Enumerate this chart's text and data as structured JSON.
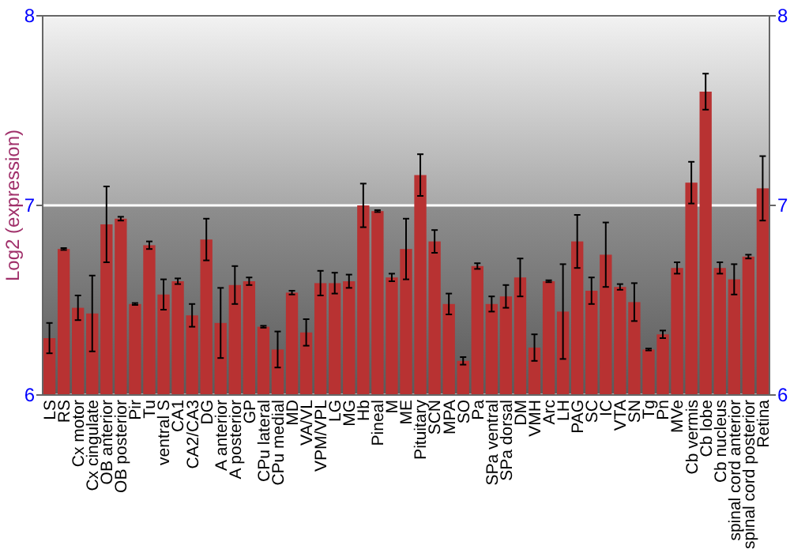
{
  "chart_data": {
    "type": "bar",
    "ylabel": "Log2 (expression)",
    "categories": [
      "LS",
      "RS",
      "Cx motor",
      "Cx cingulate",
      "OB anterior",
      "OB posterior",
      "Pir",
      "Tu",
      "ventral S",
      "CA1",
      "CA2/CA3",
      "DG",
      "A anterior",
      "A posterior",
      "GP",
      "CPu lateral",
      "CPu medial",
      "MD",
      "VA/VL",
      "VPM/VPL",
      "LG",
      "MG",
      "Hb",
      "Pineal",
      "M",
      "ME",
      "Pituitary",
      "SCN",
      "MPA",
      "SO",
      "Pa",
      "SPa ventral",
      "SPa dorsal",
      "DM",
      "VMH",
      "Arc",
      "LH",
      "PAG",
      "SC",
      "IC",
      "VTA",
      "SN",
      "Tg",
      "Pn",
      "MVe",
      "Cb vermis",
      "Cb lobe",
      "Cb nucleus",
      "spinal cord anterior",
      "spinal cord posterior",
      "Retina"
    ],
    "values": [
      6.3,
      6.77,
      6.46,
      6.43,
      6.9,
      6.93,
      6.48,
      6.79,
      6.53,
      6.6,
      6.42,
      6.82,
      6.38,
      6.58,
      6.6,
      6.36,
      6.24,
      6.54,
      6.33,
      6.59,
      6.59,
      6.6,
      7.0,
      6.97,
      6.62,
      6.77,
      7.16,
      6.81,
      6.48,
      6.18,
      6.68,
      6.48,
      6.52,
      6.62,
      6.25,
      6.6,
      6.44,
      6.81,
      6.55,
      6.74,
      6.57,
      6.49,
      6.24,
      6.32,
      6.67,
      7.12,
      7.6,
      6.67,
      6.61,
      6.73,
      7.09
    ],
    "errors": [
      0.08,
      0.005,
      0.065,
      0.2,
      0.2,
      0.01,
      0.005,
      0.02,
      0.08,
      0.015,
      0.06,
      0.11,
      0.185,
      0.1,
      0.02,
      0.005,
      0.095,
      0.01,
      0.07,
      0.065,
      0.055,
      0.035,
      0.115,
      0.005,
      0.02,
      0.16,
      0.11,
      0.06,
      0.055,
      0.02,
      0.015,
      0.04,
      0.06,
      0.1,
      0.07,
      0.005,
      0.25,
      0.14,
      0.07,
      0.17,
      0.015,
      0.1,
      0.005,
      0.02,
      0.03,
      0.11,
      0.095,
      0.03,
      0.08,
      0.01,
      0.17
    ],
    "color": "#b83232",
    "ylim": [
      6,
      8
    ],
    "yticks": [
      6,
      7,
      8
    ],
    "y2lim": [
      6,
      8
    ],
    "y2ticks": [
      6,
      7,
      8
    ],
    "grid": "y"
  }
}
